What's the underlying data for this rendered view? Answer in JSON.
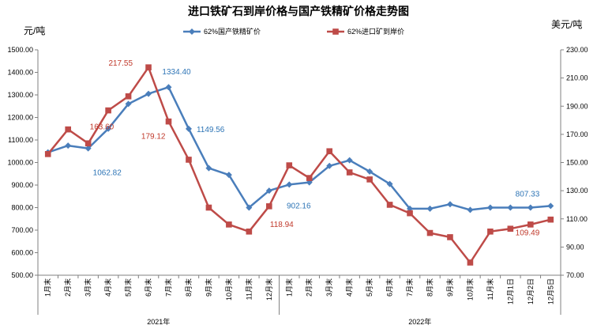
{
  "chart_data": {
    "type": "line",
    "title": "进口铁矿石到岸价格与国产铁精矿价格走势图",
    "y_left_unit": "元/吨",
    "y_right_unit": "美元/吨",
    "y_left_ticks": [
      "500.00",
      "600.00",
      "700.00",
      "800.00",
      "900.00",
      "1000.00",
      "1100.00",
      "1200.00",
      "1300.00",
      "1400.00",
      "1500.00"
    ],
    "y_right_ticks": [
      "70.00",
      "90.00",
      "110.00",
      "130.00",
      "150.00",
      "170.00",
      "190.00",
      "210.00",
      "230.00"
    ],
    "ylim_left": [
      500,
      1500
    ],
    "ylim_right": [
      70,
      230
    ],
    "categories": [
      "1月末",
      "2月末",
      "3月末",
      "4月末",
      "5月末",
      "6月末",
      "7月末",
      "8月末",
      "9月末",
      "10月末",
      "11月末",
      "12月末",
      "1月末",
      "2月末",
      "3月末",
      "4月末",
      "5月末",
      "6月末",
      "7月末",
      "8月末",
      "9月末",
      "10月末",
      "11月末",
      "12月1日",
      "12月2日",
      "12月5日"
    ],
    "groups": [
      {
        "label": "2021年",
        "count": 12
      },
      {
        "label": "2022年",
        "count": 14
      }
    ],
    "legend_position": "top",
    "grid": false,
    "series": [
      {
        "name": "62%国产铁精矿价",
        "axis": "left",
        "color": "#4a7ebb",
        "marker": "diamond",
        "values": [
          1045,
          1075,
          1062.82,
          1150,
          1260,
          1305,
          1334.4,
          1149.56,
          975,
          945,
          800,
          875,
          902.16,
          912,
          985,
          1010,
          960,
          905,
          795,
          795,
          815,
          790,
          800,
          800,
          800,
          807.33
        ]
      },
      {
        "name": "62%进口矿到岸价",
        "axis": "right",
        "color": "#be4b48",
        "marker": "square",
        "values": [
          156,
          173.5,
          163.6,
          187,
          197,
          217.55,
          179.12,
          152,
          118,
          106,
          101,
          118.94,
          148,
          139,
          158,
          143,
          138,
          120,
          114,
          100,
          97,
          79,
          101,
          103,
          106,
          109.49
        ]
      }
    ],
    "annotations": [
      {
        "series": 0,
        "index": 2,
        "text": "1062.82",
        "color": "#2e75b6",
        "anchor": "start",
        "dx": 6,
        "dy": 34
      },
      {
        "series": 0,
        "index": 6,
        "text": "1334.40",
        "color": "#2e75b6",
        "anchor": "middle",
        "dx": 10,
        "dy": -16
      },
      {
        "series": 0,
        "index": 7,
        "text": "1149.56",
        "color": "#2e75b6",
        "anchor": "start",
        "dx": 10,
        "dy": 4
      },
      {
        "series": 0,
        "index": 12,
        "text": "902.16",
        "color": "#2e75b6",
        "anchor": "middle",
        "dx": 12,
        "dy": 30
      },
      {
        "series": 0,
        "index": 25,
        "text": "807.33",
        "color": "#2e75b6",
        "anchor": "end",
        "dx": -14,
        "dy": -12
      },
      {
        "series": 1,
        "index": 2,
        "text": "163.60",
        "color": "#c0392b",
        "anchor": "start",
        "dx": 2,
        "dy": -18
      },
      {
        "series": 1,
        "index": 5,
        "text": "217.55",
        "color": "#c0392b",
        "anchor": "end",
        "dx": -20,
        "dy": -2
      },
      {
        "series": 1,
        "index": 6,
        "text": "179.12",
        "color": "#c0392b",
        "anchor": "end",
        "dx": -4,
        "dy": 22
      },
      {
        "series": 1,
        "index": 11,
        "text": "118.94",
        "color": "#c0392b",
        "anchor": "middle",
        "dx": 16,
        "dy": 26
      },
      {
        "series": 1,
        "index": 25,
        "text": "109.49",
        "color": "#c0392b",
        "anchor": "end",
        "dx": -14,
        "dy": 20
      }
    ]
  }
}
